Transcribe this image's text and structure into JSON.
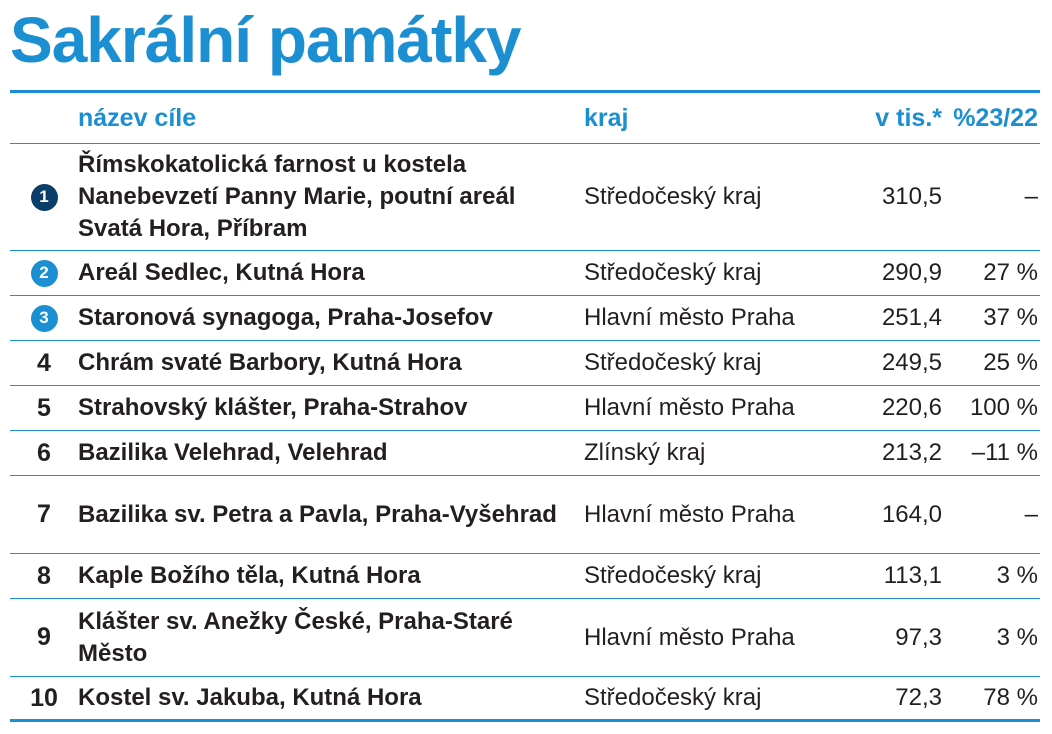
{
  "title": "Sakrální památky",
  "colors": {
    "accent": "#1b8fd2",
    "rank1_badge": "#0b3d6b",
    "rank23_badge": "#1b8fd2"
  },
  "chart_data": {
    "type": "table",
    "columns": [
      "název cíle",
      "kraj",
      "v tis.*",
      "%23/22"
    ],
    "rows": [
      {
        "rank": "1",
        "name": "Římskokatolická farnost u kostela Nanebevzetí Panny Marie, poutní areál Svatá Hora, Příbram",
        "region": "Středočeský kraj",
        "value": "310,5",
        "change": "–"
      },
      {
        "rank": "2",
        "name": "Areál Sedlec, Kutná Hora",
        "region": "Středočeský kraj",
        "value": "290,9",
        "change": "27 %"
      },
      {
        "rank": "3",
        "name": "Staronová synagoga, Praha-Josefov",
        "region": "Hlavní město Praha",
        "value": "251,4",
        "change": "37 %"
      },
      {
        "rank": "4",
        "name": "Chrám svaté Barbory, Kutná Hora",
        "region": "Středočeský kraj",
        "value": "249,5",
        "change": "25 %"
      },
      {
        "rank": "5",
        "name": "Strahovský klášter, Praha-Strahov",
        "region": "Hlavní město Praha",
        "value": "220,6",
        "change": "100 %"
      },
      {
        "rank": "6",
        "name": "Bazilika Velehrad, Velehrad",
        "region": "Zlínský kraj",
        "value": "213,2",
        "change": "–11 %"
      },
      {
        "rank": "7",
        "name": "Bazilika sv. Petra a Pavla, Praha-Vyšehrad",
        "region": "Hlavní město Praha",
        "value": "164,0",
        "change": "–"
      },
      {
        "rank": "8",
        "name": "Kaple Božího těla, Kutná Hora",
        "region": "Středočeský kraj",
        "value": "113,1",
        "change": "3 %"
      },
      {
        "rank": "9",
        "name": "Klášter sv. Anežky České, Praha-Staré Město",
        "region": "Hlavní město Praha",
        "value": "97,3",
        "change": "3 %"
      },
      {
        "rank": "10",
        "name": "Kostel sv. Jakuba, Kutná Hora",
        "region": "Středočeský kraj",
        "value": "72,3",
        "change": "78 %"
      }
    ]
  }
}
